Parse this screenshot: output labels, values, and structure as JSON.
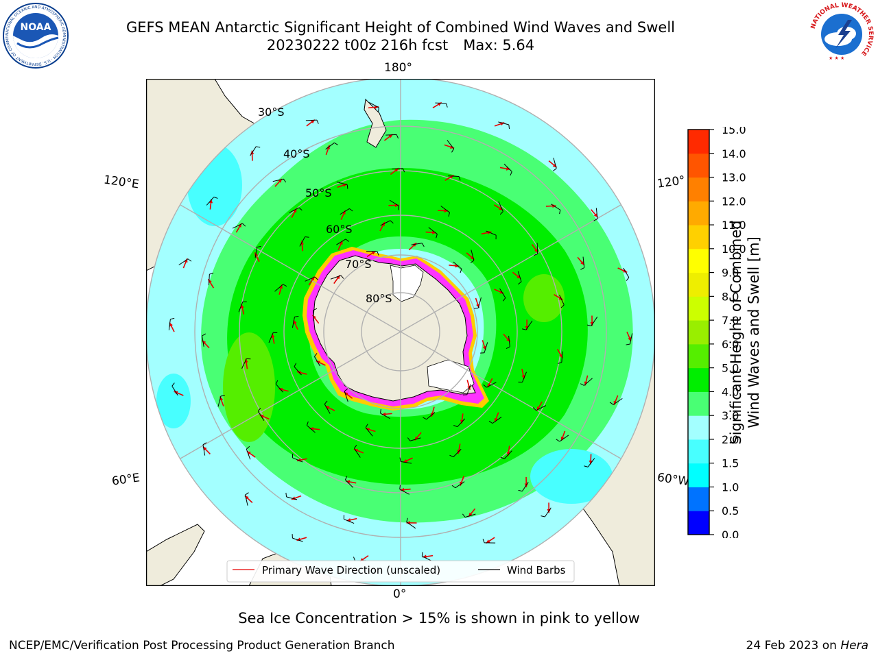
{
  "header": {
    "title_line1": "GEFS MEAN Antarctic Significant Height of Combined Wind Waves and Swell",
    "run_label": "20230222 t00z 216h fcst",
    "max_label": "Max: 5.64"
  },
  "logos": {
    "left": {
      "text": "NOAA",
      "ring_text": "NATIONAL OCEANIC AND ATMOSPHERIC ADMINISTRATION · U.S. DEPARTMENT OF COMMERCE",
      "color": "#0b3f8f"
    },
    "right": {
      "ring_text": "NATIONAL WEATHER SERVICE",
      "color": "#d7191c"
    }
  },
  "map": {
    "projection": "south-polar-stereographic",
    "longitude_labels": {
      "top": "180°",
      "bottom": "0°",
      "left_upper": "120°E",
      "left_lower": "60°E",
      "right_upper": "120°",
      "right_lower": "60°W"
    },
    "latitude_labels": [
      "30°S",
      "40°S",
      "50°S",
      "60°S",
      "70°S",
      "80°S"
    ],
    "colors": {
      "land": "#efecdc",
      "grid": "#b0b0b0",
      "ice": "#ff33ff",
      "ice_edge": "#ffcc00",
      "arrow": "#e60000",
      "barb": "#000000"
    },
    "legend": {
      "wave_direction": "Primary Wave Direction (unscaled)",
      "wind_barbs": "Wind Barbs"
    }
  },
  "colorbar": {
    "label_line1": "Significant Height of Combined",
    "label_line2": "Wind Waves and Swell [m]",
    "ticks": [
      "0.0",
      "0.5",
      "1.0",
      "1.5",
      "2.0",
      "3.0",
      "4.0",
      "5.0",
      "6.0",
      "7.0",
      "8.0",
      "9.0",
      "10.0",
      "11.0",
      "12.0",
      "13.0",
      "14.0",
      "15.0"
    ],
    "colors": [
      "#0000ff",
      "#0073ff",
      "#00ffff",
      "#48ffff",
      "#a3ffff",
      "#49ff74",
      "#00ee00",
      "#55ee00",
      "#99ee00",
      "#ccff00",
      "#eeee00",
      "#ffff00",
      "#ffd000",
      "#ffaa00",
      "#ff8000",
      "#ff5500",
      "#ff2a00",
      "#ff0000"
    ]
  },
  "caption": "Sea Ice Concentration > 15% is shown in pink to yellow",
  "footer": {
    "left": "NCEP/EMC/Verification Post Processing Product Generation Branch",
    "right_prefix": "24 Feb 2023 on ",
    "right_machine": "Hera"
  }
}
